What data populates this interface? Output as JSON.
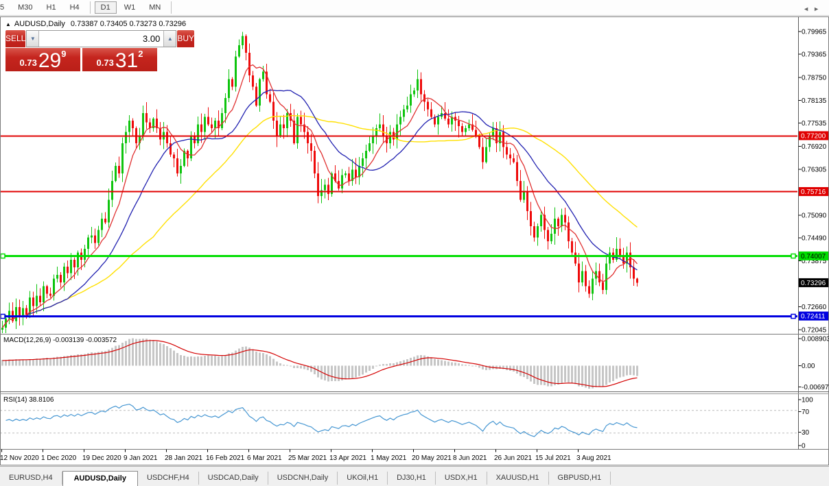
{
  "toolbar": {
    "items": [
      {
        "label": "5",
        "first": true
      },
      {
        "label": "M30"
      },
      {
        "label": "H1"
      },
      {
        "label": "H4"
      },
      {
        "sep": true
      },
      {
        "label": "D1",
        "selected": true
      },
      {
        "label": "W1"
      },
      {
        "label": "MN"
      },
      {
        "sep": true
      }
    ]
  },
  "chart_header": {
    "collapse_icon": "▲",
    "symbol": "AUDUSD,Daily",
    "ohlc": "0.73387 0.73405 0.73273 0.73296"
  },
  "trade_panel": {
    "sell_label": "SELL",
    "buy_label": "BUY",
    "volume": "3.00",
    "spinner_down": "▼",
    "spinner_up": "▲",
    "sell_price": {
      "prefix": "0.73",
      "big": "29",
      "sup": "9"
    },
    "buy_price": {
      "prefix": "0.73",
      "big": "31",
      "sup": "2"
    }
  },
  "price_axis": {
    "ticks": [
      "0.79965",
      "0.79365",
      "0.78750",
      "0.78135",
      "0.77535",
      "0.76920",
      "0.76305",
      "0.75090",
      "0.74490",
      "0.73875",
      "0.72660",
      "0.72045"
    ],
    "badges": [
      {
        "value": "0.77200",
        "bg": "#e00000",
        "fg": "#ffffff"
      },
      {
        "value": "0.75716",
        "bg": "#e00000",
        "fg": "#ffffff"
      },
      {
        "value": "0.74007",
        "bg": "#00dd00",
        "fg": "#000000"
      },
      {
        "value": "0.73296",
        "bg": "#000000",
        "fg": "#ffffff"
      },
      {
        "value": "0.72411",
        "bg": "#0000e0",
        "fg": "#ffffff"
      }
    ]
  },
  "indicators": {
    "macd": {
      "label": "MACD(12,26,9) -0.003139 -0.003572",
      "axis": [
        "0.008903",
        "0.00",
        "-0.006977"
      ]
    },
    "rsi": {
      "label": "RSI(14) 38.8106",
      "axis": [
        "100",
        "70",
        "30",
        "0"
      ]
    }
  },
  "date_axis": {
    "labels": [
      "12 Nov 2020",
      "1 Dec 2020",
      "19 Dec 2020",
      "9 Jan 2021",
      "28 Jan 2021",
      "16 Feb 2021",
      "6 Mar 2021",
      "25 Mar 2021",
      "13 Apr 2021",
      "1 May 2021",
      "20 May 2021",
      "8 Jun 2021",
      "26 Jun 2021",
      "15 Jul 2021",
      "3 Aug 2021"
    ]
  },
  "tab_bar": {
    "tabs": [
      {
        "label": "EURUSD,H4"
      },
      {
        "label": "AUDUSD,Daily",
        "active": true
      },
      {
        "label": "USDCHF,H4"
      },
      {
        "label": "USDCAD,Daily"
      },
      {
        "label": "USDCNH,Daily"
      },
      {
        "label": "UKOil,H1"
      },
      {
        "label": "DJ30,H1"
      },
      {
        "label": "USDX,H1"
      },
      {
        "label": "XAUUSD,H1"
      },
      {
        "label": "GBPUSD,H1"
      }
    ],
    "scroll_left": "◄",
    "scroll_right": "►"
  },
  "chart_data": {
    "type": "candlestick",
    "symbol": "AUDUSD",
    "timeframe": "Daily",
    "ohlc_current": {
      "open": 0.73387,
      "high": 0.73405,
      "low": 0.73273,
      "close": 0.73296
    },
    "price_axis_range": [
      0.72045,
      0.79965
    ],
    "levels": [
      {
        "price": 0.772,
        "color": "#e00000",
        "width": 2,
        "handles": false
      },
      {
        "price": 0.75716,
        "color": "#e00000",
        "width": 2,
        "handles": false
      },
      {
        "price": 0.74007,
        "color": "#00dd00",
        "width": 3,
        "handles": true
      },
      {
        "price": 0.72411,
        "color": "#0000e0",
        "width": 3,
        "handles": true
      }
    ],
    "moving_averages": [
      {
        "name": "fast",
        "period": 8,
        "color": "#e03030"
      },
      {
        "name": "mid",
        "period": 20,
        "color": "#2020b0"
      },
      {
        "name": "slow",
        "period": 45,
        "color": "#ffe000"
      }
    ],
    "candle_colors": {
      "bull": "#0ec40e",
      "bear": "#ee0a0a"
    },
    "macd_colors": {
      "histogram": "#c6c6c6",
      "signal": "#d40000"
    },
    "rsi_color": "#4596d2",
    "rsi_levels": [
      70,
      30
    ],
    "closes": [
      0.721,
      0.7235,
      0.7255,
      0.7228,
      0.7265,
      0.724,
      0.7262,
      0.7245,
      0.729,
      0.7268,
      0.7295,
      0.7278,
      0.732,
      0.73,
      0.7295,
      0.734,
      0.735,
      0.733,
      0.7372,
      0.7355,
      0.739,
      0.737,
      0.741,
      0.739,
      0.742,
      0.745,
      0.7455,
      0.7435,
      0.747,
      0.75,
      0.749,
      0.755,
      0.76,
      0.764,
      0.762,
      0.77,
      0.773,
      0.776,
      0.774,
      0.77,
      0.772,
      0.778,
      0.7755,
      0.774,
      0.7765,
      0.774,
      0.771,
      0.773,
      0.77,
      0.767,
      0.766,
      0.762,
      0.764,
      0.768,
      0.766,
      0.772,
      0.77,
      0.775,
      0.773,
      0.777,
      0.775,
      0.774,
      0.776,
      0.774,
      0.778,
      0.782,
      0.787,
      0.785,
      0.793,
      0.796,
      0.7985,
      0.794,
      0.788,
      0.785,
      0.78,
      0.787,
      0.789,
      0.783,
      0.781,
      0.776,
      0.772,
      0.775,
      0.774,
      0.778,
      0.776,
      0.77,
      0.777,
      0.775,
      0.773,
      0.77,
      0.768,
      0.762,
      0.756,
      0.7575,
      0.759,
      0.7565,
      0.762,
      0.76,
      0.758,
      0.7615,
      0.762,
      0.76,
      0.763,
      0.761,
      0.764,
      0.766,
      0.768,
      0.77,
      0.772,
      0.774,
      0.775,
      0.772,
      0.77,
      0.773,
      0.771,
      0.775,
      0.777,
      0.779,
      0.78,
      0.783,
      0.784,
      0.787,
      0.783,
      0.781,
      0.779,
      0.777,
      0.775,
      0.777,
      0.778,
      0.7765,
      0.775,
      0.777,
      0.776,
      0.7745,
      0.773,
      0.774,
      0.775,
      0.7735,
      0.772,
      0.769,
      0.765,
      0.769,
      0.772,
      0.774,
      0.77,
      0.773,
      0.769,
      0.767,
      0.766,
      0.765,
      0.76,
      0.755,
      0.757,
      0.752,
      0.748,
      0.745,
      0.748,
      0.751,
      0.747,
      0.744,
      0.746,
      0.75,
      0.748,
      0.751,
      0.749,
      0.744,
      0.741,
      0.738,
      0.733,
      0.736,
      0.732,
      0.73,
      0.734,
      0.736,
      0.733,
      0.731,
      0.738,
      0.741,
      0.739,
      0.742,
      0.74,
      0.738,
      0.741,
      0.737,
      0.734,
      0.73296
    ]
  }
}
